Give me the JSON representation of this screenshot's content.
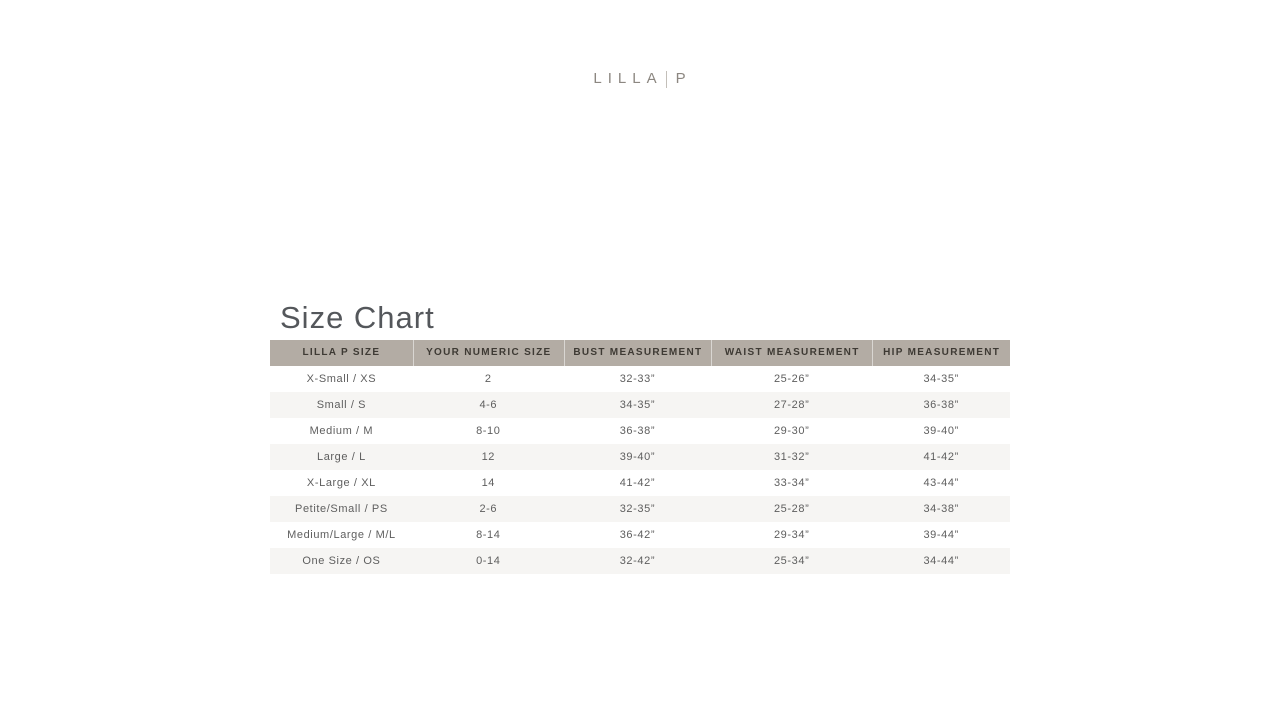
{
  "brand": {
    "name": "LILLA",
    "suffix": "P"
  },
  "page": {
    "heading": "Size Chart"
  },
  "size_chart": {
    "headers": [
      "LILLA P SIZE",
      "YOUR NUMERIC SIZE",
      "BUST MEASUREMENT",
      "WAIST MEASUREMENT",
      "HIP MEASUREMENT"
    ],
    "rows": [
      [
        "X-Small / XS",
        "2",
        "32-33”",
        "25-26”",
        "34-35”"
      ],
      [
        "Small / S",
        "4-6",
        "34-35”",
        "27-28”",
        "36-38”"
      ],
      [
        "Medium / M",
        "8-10",
        "36-38”",
        "29-30”",
        "39-40”"
      ],
      [
        "Large / L",
        "12",
        "39-40”",
        "31-32”",
        "41-42”"
      ],
      [
        "X-Large / XL",
        "14",
        "41-42”",
        "33-34”",
        "43-44”"
      ],
      [
        "Petite/Small / PS",
        "2-6",
        "32-35”",
        "25-28”",
        "34-38”"
      ],
      [
        "Medium/Large / M/L",
        "8-14",
        "36-42”",
        "29-34”",
        "39-44”"
      ],
      [
        "One Size / OS",
        "0-14",
        "32-42”",
        "25-34”",
        "34-44”"
      ]
    ],
    "colors": {
      "header_bg": "#b3aca4",
      "header_text": "#3e3a34",
      "stripe_bg": "#f6f5f3",
      "body_text": "#5e5e5e",
      "accent_logo": "#8c8781"
    }
  }
}
